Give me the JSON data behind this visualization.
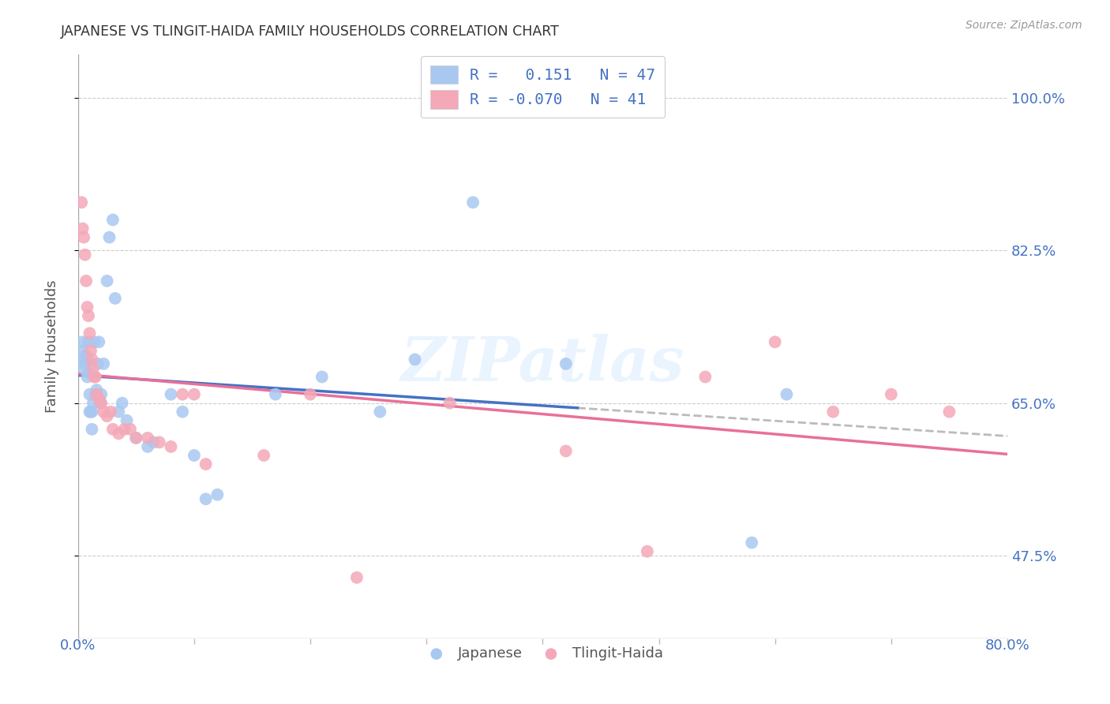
{
  "title": "JAPANESE VS TLINGIT-HAIDA FAMILY HOUSEHOLDS CORRELATION CHART",
  "source": "Source: ZipAtlas.com",
  "ylabel": "Family Households",
  "ytick_labels": [
    "47.5%",
    "65.0%",
    "82.5%",
    "100.0%"
  ],
  "ytick_values": [
    0.475,
    0.65,
    0.825,
    1.0
  ],
  "xlim": [
    0.0,
    0.8
  ],
  "ylim": [
    0.38,
    1.05
  ],
  "watermark": "ZIPatlas",
  "color_japanese": "#A8C8F0",
  "color_tlingit": "#F4A8B8",
  "color_japanese_line": "#4472C4",
  "color_tlingit_line": "#E8709A",
  "japanese_x": [
    0.002,
    0.003,
    0.004,
    0.005,
    0.006,
    0.007,
    0.008,
    0.008,
    0.009,
    0.009,
    0.01,
    0.01,
    0.011,
    0.012,
    0.012,
    0.013,
    0.014,
    0.015,
    0.016,
    0.017,
    0.018,
    0.019,
    0.02,
    0.022,
    0.025,
    0.027,
    0.03,
    0.032,
    0.035,
    0.038,
    0.042,
    0.05,
    0.06,
    0.065,
    0.08,
    0.09,
    0.1,
    0.11,
    0.12,
    0.17,
    0.21,
    0.26,
    0.29,
    0.34,
    0.42,
    0.58,
    0.61
  ],
  "japanese_y": [
    0.7,
    0.71,
    0.72,
    0.69,
    0.695,
    0.705,
    0.7,
    0.68,
    0.72,
    0.685,
    0.66,
    0.64,
    0.64,
    0.62,
    0.64,
    0.65,
    0.72,
    0.66,
    0.665,
    0.695,
    0.72,
    0.65,
    0.66,
    0.695,
    0.79,
    0.84,
    0.86,
    0.77,
    0.64,
    0.65,
    0.63,
    0.61,
    0.6,
    0.605,
    0.66,
    0.64,
    0.59,
    0.54,
    0.545,
    0.66,
    0.68,
    0.64,
    0.7,
    0.88,
    0.695,
    0.49,
    0.66
  ],
  "tlingit_x": [
    0.003,
    0.004,
    0.005,
    0.006,
    0.007,
    0.008,
    0.009,
    0.01,
    0.011,
    0.012,
    0.013,
    0.014,
    0.015,
    0.016,
    0.018,
    0.02,
    0.022,
    0.025,
    0.028,
    0.03,
    0.035,
    0.04,
    0.045,
    0.05,
    0.06,
    0.07,
    0.08,
    0.09,
    0.1,
    0.11,
    0.16,
    0.2,
    0.24,
    0.32,
    0.42,
    0.49,
    0.54,
    0.6,
    0.65,
    0.7,
    0.75
  ],
  "tlingit_y": [
    0.88,
    0.85,
    0.84,
    0.82,
    0.79,
    0.76,
    0.75,
    0.73,
    0.71,
    0.7,
    0.69,
    0.68,
    0.68,
    0.66,
    0.655,
    0.65,
    0.64,
    0.635,
    0.64,
    0.62,
    0.615,
    0.62,
    0.62,
    0.61,
    0.61,
    0.605,
    0.6,
    0.66,
    0.66,
    0.58,
    0.59,
    0.66,
    0.45,
    0.65,
    0.595,
    0.48,
    0.68,
    0.72,
    0.64,
    0.66,
    0.64
  ]
}
